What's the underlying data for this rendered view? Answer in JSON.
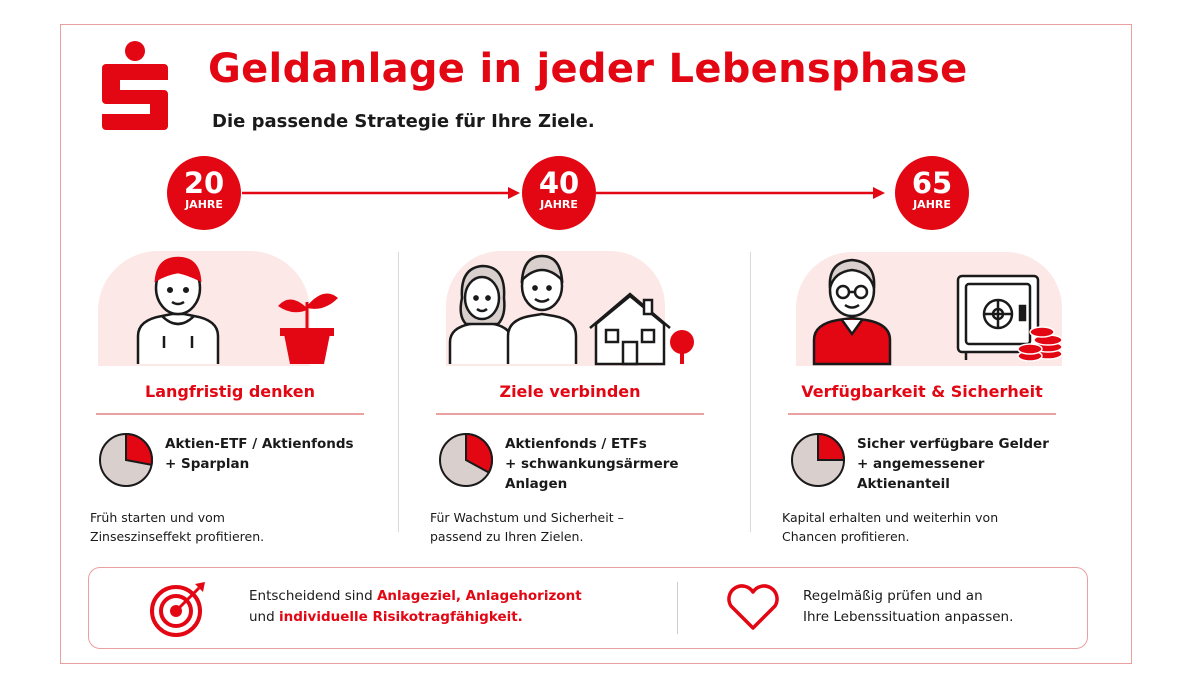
{
  "header": {
    "title": "Geldanlage in jeder Lebensphase",
    "subtitle": "Die passende Strategie für Ihre Ziele."
  },
  "colors": {
    "brand_red": "#e30613",
    "light_pink": "#fde8e8",
    "pie_gray": "#d9cfcd"
  },
  "phases": [
    {
      "age": "20",
      "age_unit": "JAHRE",
      "heading": "Langfristig denken",
      "strategy": "Aktien-ETF / Aktienfonds\n+ Sparplan",
      "description": "Früh starten und vom\nZinseszinseffekt profitieren.",
      "equity_share": 0.28,
      "icons": [
        "young-person-icon",
        "plant-pot-icon"
      ]
    },
    {
      "age": "40",
      "age_unit": "JAHRE",
      "heading": "Ziele verbinden",
      "strategy": "Aktienfonds / ETFs\n+ schwankungsärmere\nAnlagen",
      "description": "Für Wachstum und Sicherheit –\npassend zu Ihren Zielen.",
      "equity_share": 0.33,
      "icons": [
        "couple-icon",
        "house-icon",
        "tree-icon"
      ]
    },
    {
      "age": "65",
      "age_unit": "JAHRE",
      "heading": "Verfügbarkeit & Sicherheit",
      "strategy": "Sicher verfügbare Gelder\n+ angemessener\nAktienanteil",
      "description": "Kapital erhalten und weiterhin von\nChancen profitieren.",
      "equity_share": 0.25,
      "icons": [
        "senior-person-icon",
        "safe-icon",
        "coins-icon"
      ]
    }
  ],
  "footer": {
    "left_text_1": "Entscheidend sind ",
    "left_highlight_1": "Anlageziel, Anlagehorizont",
    "left_text_2": "und ",
    "left_highlight_2": "individuelle Risikotragfähigkeit.",
    "right_line_1": "Regelmäßig prüfen und an",
    "right_line_2": "Ihre Lebenssituation anpassen."
  }
}
